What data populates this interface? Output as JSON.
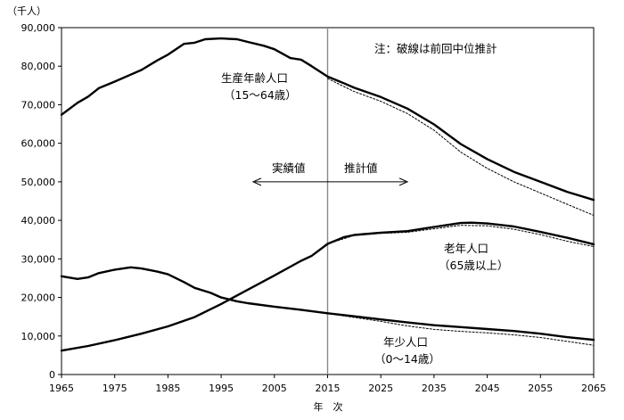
{
  "chart_data": {
    "type": "line",
    "unit_label": "（千人）",
    "xlabel": "年　次",
    "ylabel": "",
    "xlim": [
      1965,
      2065
    ],
    "ylim": [
      0,
      90000
    ],
    "y_ticks": [
      0,
      10000,
      20000,
      30000,
      40000,
      50000,
      60000,
      70000,
      80000,
      90000
    ],
    "y_tick_labels": [
      "0",
      "10,000",
      "20,000",
      "30,000",
      "40,000",
      "50,000",
      "60,000",
      "70,000",
      "80,000",
      "90,000"
    ],
    "x_ticks": [
      1965,
      1975,
      1985,
      1995,
      2005,
      2015,
      2025,
      2035,
      2045,
      2055,
      2065
    ],
    "x_tick_labels": [
      "1965",
      "1975",
      "1985",
      "1995",
      "2005",
      "2015",
      "2025",
      "2035",
      "2045",
      "2055",
      "2065"
    ],
    "reference_year": 2015,
    "note": "注：破線は前回中位推計",
    "period_labels": {
      "actual": "実績値",
      "projected": "推計値"
    },
    "arrow_span": [
      2001,
      2030
    ],
    "series": [
      {
        "name": "生産年齢人口",
        "label_lines": [
          "生産年齢人口",
          "（15～64歳）"
        ],
        "style": "solid",
        "x": [
          1965,
          1968,
          1970,
          1972,
          1975,
          1978,
          1980,
          1983,
          1985,
          1988,
          1990,
          1992,
          1995,
          1998,
          2000,
          2003,
          2005,
          2008,
          2010,
          2012,
          2015,
          2018,
          2020,
          2025,
          2030,
          2035,
          2040,
          2045,
          2050,
          2055,
          2060,
          2065
        ],
        "values": [
          67400,
          70500,
          72100,
          74300,
          76000,
          77800,
          79000,
          81500,
          83000,
          85800,
          86100,
          87000,
          87200,
          87000,
          86300,
          85300,
          84400,
          82100,
          81700,
          80000,
          77300,
          75600,
          74400,
          72000,
          69000,
          64900,
          59800,
          55900,
          52600,
          50000,
          47400,
          45300
        ]
      },
      {
        "name": "生産年齢人口（前回中位推計）",
        "style": "dotted",
        "x": [
          2015,
          2020,
          2025,
          2030,
          2035,
          2040,
          2045,
          2050,
          2055,
          2060,
          2065
        ],
        "values": [
          76800,
          73400,
          70900,
          67700,
          63400,
          57700,
          53500,
          50000,
          47100,
          44200,
          41300
        ]
      },
      {
        "name": "老年人口",
        "label_lines": [
          "老年人口",
          "（65歳以上）"
        ],
        "style": "solid",
        "x": [
          1965,
          1970,
          1975,
          1980,
          1985,
          1990,
          1995,
          2000,
          2005,
          2010,
          2012,
          2015,
          2018,
          2020,
          2025,
          2030,
          2035,
          2040,
          2042,
          2045,
          2050,
          2055,
          2060,
          2065
        ],
        "values": [
          6200,
          7400,
          8900,
          10600,
          12500,
          14900,
          18300,
          22000,
          25700,
          29500,
          30800,
          33900,
          35600,
          36200,
          36800,
          37200,
          38300,
          39300,
          39400,
          39200,
          38400,
          37000,
          35500,
          33800
        ]
      },
      {
        "name": "老年人口（前回中位推計）",
        "style": "dotted",
        "x": [
          2015,
          2020,
          2025,
          2030,
          2035,
          2040,
          2045,
          2050,
          2055,
          2060,
          2065
        ],
        "values": [
          33900,
          36100,
          36600,
          36900,
          37800,
          38700,
          38600,
          37700,
          36300,
          34600,
          33200
        ]
      },
      {
        "name": "年少人口",
        "label_lines": [
          "年少人口",
          "（0～14歳）"
        ],
        "style": "solid",
        "x": [
          1965,
          1968,
          1970,
          1972,
          1975,
          1978,
          1980,
          1983,
          1985,
          1988,
          1990,
          1993,
          1995,
          1998,
          2000,
          2005,
          2010,
          2015,
          2020,
          2025,
          2030,
          2035,
          2040,
          2045,
          2050,
          2055,
          2060,
          2065
        ],
        "values": [
          25500,
          24800,
          25200,
          26300,
          27200,
          27800,
          27500,
          26700,
          26000,
          24000,
          22500,
          21200,
          20000,
          19000,
          18500,
          17600,
          16800,
          15900,
          15100,
          14300,
          13500,
          12800,
          12300,
          11800,
          11300,
          10600,
          9700,
          9000
        ]
      },
      {
        "name": "年少人口（前回中位推計）",
        "style": "dotted",
        "x": [
          2015,
          2020,
          2025,
          2030,
          2035,
          2040,
          2045,
          2050,
          2055,
          2060,
          2065
        ],
        "values": [
          15800,
          14800,
          13800,
          12600,
          11700,
          11200,
          10800,
          10300,
          9600,
          8600,
          7600
        ]
      }
    ]
  }
}
